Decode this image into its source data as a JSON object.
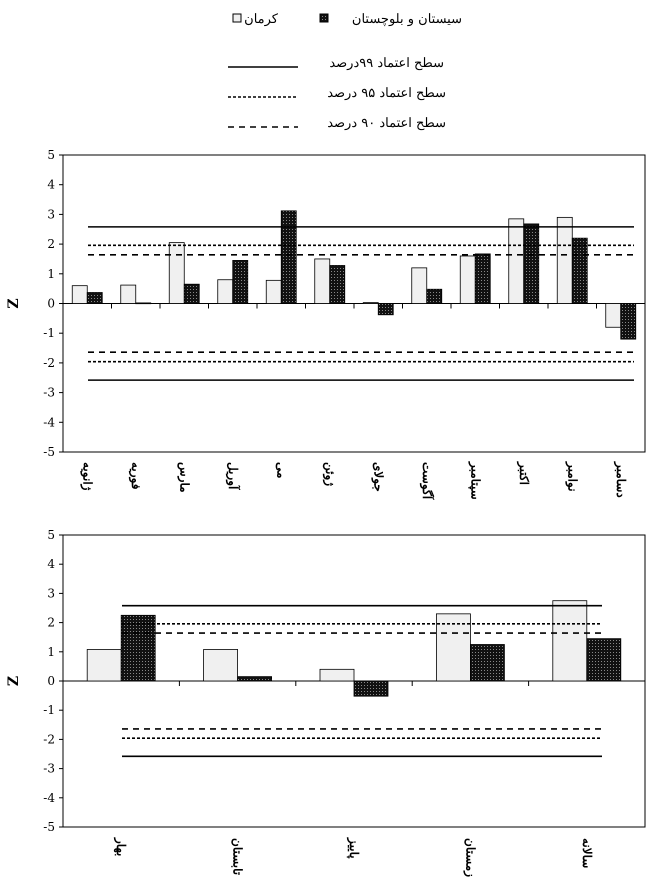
{
  "legend": {
    "series": [
      {
        "key": "kerman",
        "label": "کرمان",
        "fill": "#f0f0f0"
      },
      {
        "key": "sistan",
        "label": "سیستان و بلوچستان",
        "fill": "#1a1a1a"
      }
    ],
    "levels": [
      {
        "key": "l99",
        "label": "سطح اعتماد ۹۹درصد",
        "dash": "solid"
      },
      {
        "key": "l95",
        "label": "سطح اعتماد ۹۵ درصد",
        "dash": "short"
      },
      {
        "key": "l90",
        "label": "سطح اعتماد ۹۰ درصد",
        "dash": "long"
      }
    ]
  },
  "chart_data": [
    {
      "type": "bar",
      "ylabel": "Z",
      "ylim": [
        -5,
        5
      ],
      "yticks": [
        5,
        4,
        3,
        2,
        1,
        0,
        -1,
        -2,
        -3,
        -4,
        -5
      ],
      "grid": false,
      "categories": [
        "ژانویه",
        "فوریه",
        "مارس",
        "آوریل",
        "می",
        "ژوئن",
        "جولای",
        "آگوست",
        "سپتامبر",
        "اکتبر",
        "نوامبر",
        "دسامبر"
      ],
      "series": [
        {
          "name": "کرمان",
          "values": [
            0.6,
            0.62,
            2.05,
            0.8,
            0.78,
            1.5,
            0.03,
            1.2,
            1.6,
            2.85,
            2.9,
            -0.8
          ]
        },
        {
          "name": "سیستان و بلوچستان",
          "values": [
            0.37,
            0.02,
            0.65,
            1.45,
            3.12,
            1.28,
            -0.38,
            0.48,
            1.67,
            2.68,
            2.2,
            -1.2
          ]
        }
      ],
      "reference_lines": [
        {
          "level": "l99",
          "values": [
            2.58,
            -2.58
          ]
        },
        {
          "level": "l95",
          "values": [
            1.96,
            -1.96
          ]
        },
        {
          "level": "l90",
          "values": [
            1.64,
            -1.64
          ]
        }
      ]
    },
    {
      "type": "bar",
      "ylabel": "Z",
      "ylim": [
        -5,
        5
      ],
      "yticks": [
        5,
        4,
        3,
        2,
        1,
        0,
        -1,
        -2,
        -3,
        -4,
        -5
      ],
      "grid": false,
      "categories": [
        "بهار",
        "تابستان",
        "پاییز",
        "زمستان",
        "سالانه"
      ],
      "series": [
        {
          "name": "کرمان",
          "values": [
            1.08,
            1.08,
            0.4,
            2.3,
            2.75
          ]
        },
        {
          "name": "سیستان و بلوچستان",
          "values": [
            2.25,
            0.15,
            -0.52,
            1.25,
            1.45
          ]
        }
      ],
      "reference_lines": [
        {
          "level": "l99",
          "values": [
            2.58,
            -2.58
          ]
        },
        {
          "level": "l95",
          "values": [
            1.96,
            -1.96
          ]
        },
        {
          "level": "l90",
          "values": [
            1.64,
            -1.64
          ]
        }
      ]
    }
  ]
}
